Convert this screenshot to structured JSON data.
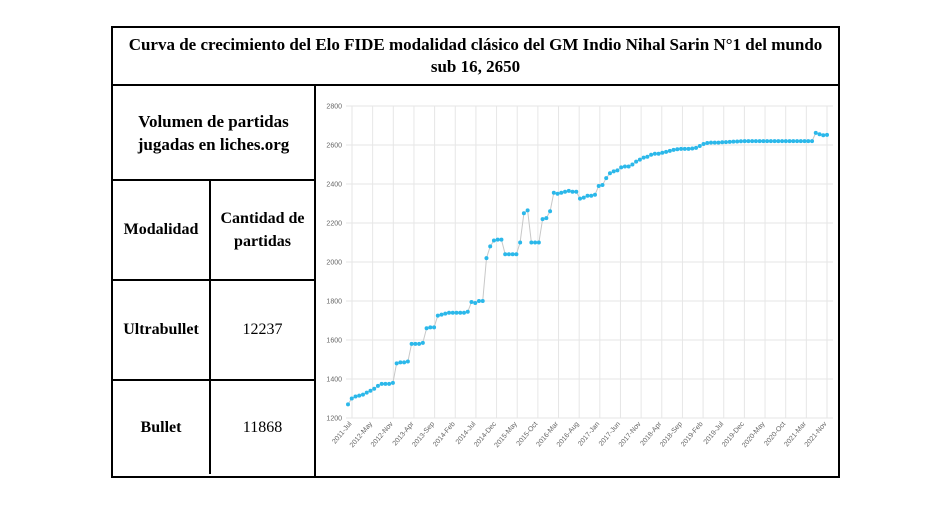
{
  "title": "Curva de crecimiento del Elo FIDE   modalidad clásico del GM  Indio Nihal Sarin N°1 del mundo sub 16, 2650",
  "table": {
    "heading": "Volumen de partidas jugadas en liches.org",
    "col_modalidad": "Modalidad",
    "col_cantidad": "Cantidad de partidas",
    "rows": [
      {
        "modalidad": "Ultrabullet",
        "cantidad": "12237"
      },
      {
        "modalidad": "Bullet",
        "cantidad": "11868"
      }
    ]
  },
  "colors": {
    "point": "#2bb8ea",
    "line": "#c8c8c8",
    "grid": "#e6e6e6"
  },
  "chart_data": {
    "type": "line",
    "title": "",
    "xlabel": "",
    "ylabel": "",
    "ylim": [
      1200,
      2800
    ],
    "yticks": [
      1200,
      1400,
      1600,
      1800,
      2000,
      2200,
      2400,
      2600,
      2800
    ],
    "xticks": [
      "2011-Jul",
      "2012-May",
      "2012-Nov",
      "2013-Apr",
      "2013-Sep",
      "2014-Feb",
      "2014-Jul",
      "2014-Dec",
      "2015-May",
      "2015-Oct",
      "2016-Mar",
      "2016-Aug",
      "2017-Jan",
      "2017-Jun",
      "2017-Nov",
      "2018-Apr",
      "2018-Sep",
      "2019-Feb",
      "2019-Jul",
      "2019-Dec",
      "2020-May",
      "2020-Oct",
      "2021-Mar",
      "2021-Nov"
    ],
    "grid": true,
    "series": [
      {
        "values": [
          1270,
          1300,
          1310,
          1315,
          1320,
          1330,
          1340,
          1350,
          1365,
          1375,
          1375,
          1375,
          1380,
          1480,
          1485,
          1485,
          1490,
          1580,
          1580,
          1580,
          1585,
          1660,
          1665,
          1665,
          1725,
          1730,
          1735,
          1740,
          1740,
          1740,
          1740,
          1740,
          1745,
          1795,
          1790,
          1800,
          1800,
          2020,
          2080,
          2110,
          2115,
          2115,
          2040,
          2040,
          2040,
          2040,
          2100,
          2250,
          2265,
          2100,
          2100,
          2100,
          2220,
          2225,
          2260,
          2355,
          2350,
          2355,
          2360,
          2365,
          2360,
          2360,
          2325,
          2330,
          2340,
          2340,
          2345,
          2390,
          2395,
          2430,
          2455,
          2465,
          2470,
          2485,
          2490,
          2490,
          2500,
          2515,
          2525,
          2535,
          2540,
          2550,
          2555,
          2555,
          2560,
          2565,
          2570,
          2575,
          2578,
          2580,
          2580,
          2580,
          2582,
          2585,
          2595,
          2605,
          2610,
          2612,
          2612,
          2612,
          2614,
          2615,
          2616,
          2617,
          2618,
          2619,
          2620,
          2620,
          2620,
          2620,
          2620,
          2620,
          2620,
          2620,
          2620,
          2620,
          2620,
          2620,
          2620,
          2620,
          2620,
          2620,
          2620,
          2620,
          2620,
          2662,
          2655,
          2650,
          2652
        ]
      }
    ]
  }
}
